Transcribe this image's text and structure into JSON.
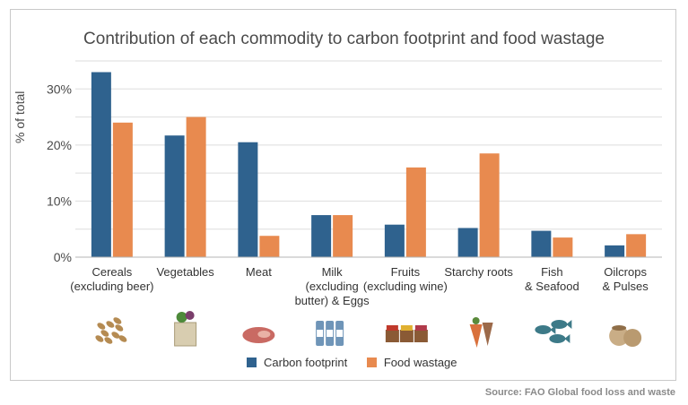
{
  "title": "Contribution of each commodity to carbon footprint and food wastage",
  "source": "Source: FAO Global food loss and waste",
  "colors": {
    "carbon": "#2f628e",
    "waste": "#e88a4f",
    "grid": "#dedede",
    "axis": "#b5b5b5"
  },
  "chart_data": {
    "type": "bar",
    "title": "Contribution of each commodity to carbon footprint and food wastage",
    "ylabel": "% of total",
    "xlabel": "",
    "ylim": [
      0,
      35
    ],
    "yticks": [
      0,
      10,
      20,
      30
    ],
    "ytick_labels": [
      "0%",
      "10%",
      "20%",
      "30%"
    ],
    "grid": true,
    "legend_position": "bottom",
    "categories": [
      [
        "Cereals",
        "(excluding beer)"
      ],
      [
        "Vegetables"
      ],
      [
        "Meat"
      ],
      [
        "Milk",
        "(excluding",
        "butter) & Eggs"
      ],
      [
        "Fruits",
        "(excluding wine)"
      ],
      [
        "Starchy roots"
      ],
      [
        "Fish",
        "& Seafood"
      ],
      [
        "Oilcrops",
        "& Pulses"
      ]
    ],
    "series": [
      {
        "name": "Carbon footprint",
        "values": [
          33,
          21.7,
          20.5,
          7.5,
          5.8,
          5.2,
          4.7,
          2.1
        ]
      },
      {
        "name": "Food wastage",
        "values": [
          24,
          25,
          3.8,
          7.5,
          16,
          18.5,
          3.5,
          4.1
        ]
      }
    ]
  },
  "icons": [
    "grain-icon",
    "vegetable-bag-icon",
    "meat-icon",
    "milk-bottles-icon",
    "fruit-crates-icon",
    "roots-icon",
    "fish-icon",
    "sacks-icon"
  ]
}
